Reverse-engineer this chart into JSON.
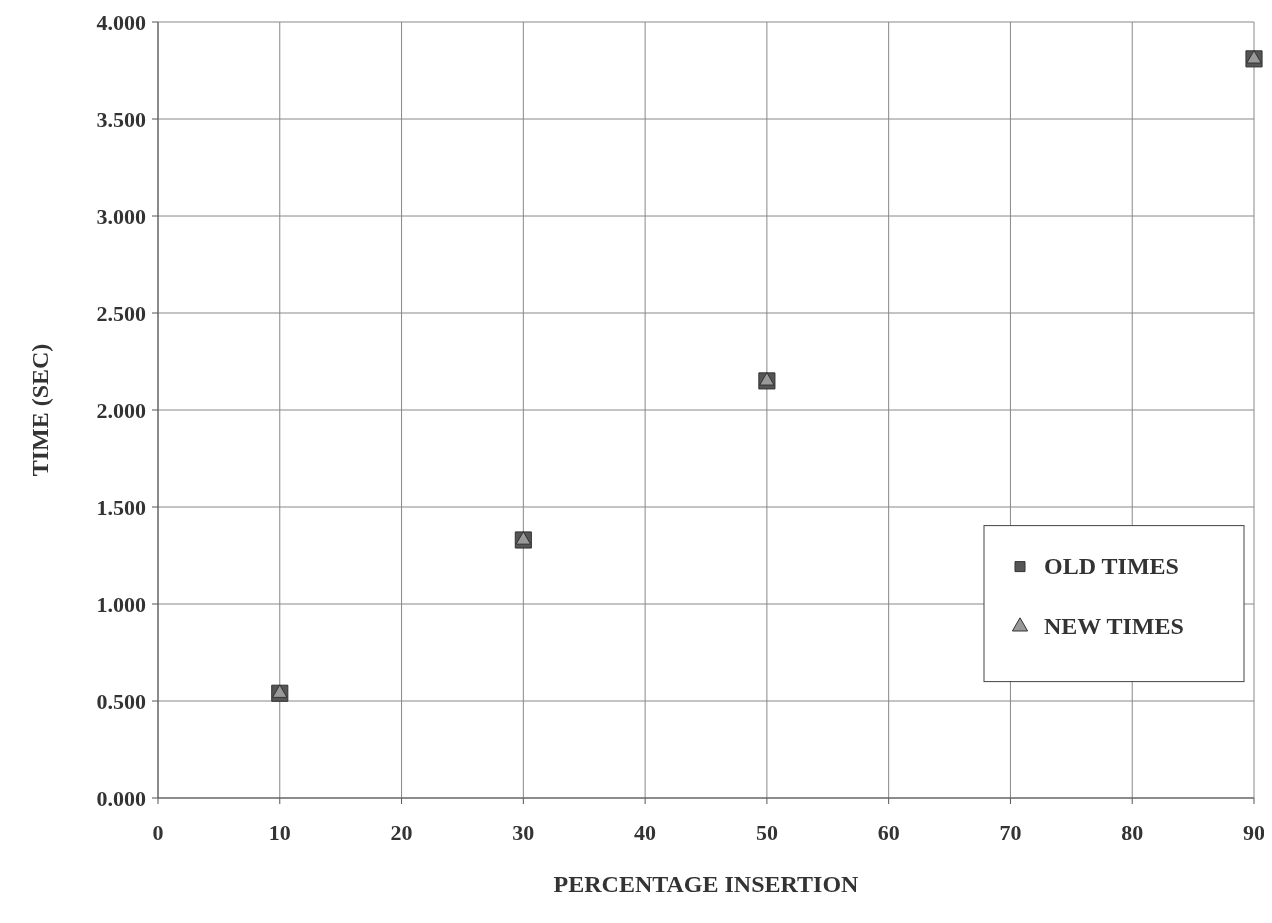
{
  "chart_data": {
    "type": "scatter",
    "xlabel": "PERCENTAGE INSERTION",
    "ylabel": "TIME (SEC)",
    "x": [
      10,
      30,
      50,
      90
    ],
    "series": [
      {
        "name": "OLD TIMES",
        "color": "#555555",
        "marker": "square",
        "values": [
          0.54,
          1.33,
          2.15,
          3.81
        ]
      },
      {
        "name": "NEW TIMES",
        "color": "#999999",
        "marker": "triangle",
        "values": [
          0.54,
          1.33,
          2.15,
          3.81
        ]
      }
    ],
    "xlim": [
      0,
      90
    ],
    "xticks": [
      0,
      10,
      20,
      30,
      40,
      50,
      60,
      70,
      80,
      90
    ],
    "ylim": [
      0,
      4
    ],
    "yticks": [
      {
        "value": 0,
        "label": "0.000"
      },
      {
        "value": 0.5,
        "label": "0.500"
      },
      {
        "value": 1,
        "label": "1.000"
      },
      {
        "value": 1.5,
        "label": "1.500"
      },
      {
        "value": 2,
        "label": "2.000"
      },
      {
        "value": 2.5,
        "label": "2.500"
      },
      {
        "value": 3,
        "label": "3.000"
      },
      {
        "value": 3.5,
        "label": "3.500"
      },
      {
        "value": 4,
        "label": "4.000"
      }
    ],
    "grid": true,
    "legend": "bottom right"
  }
}
